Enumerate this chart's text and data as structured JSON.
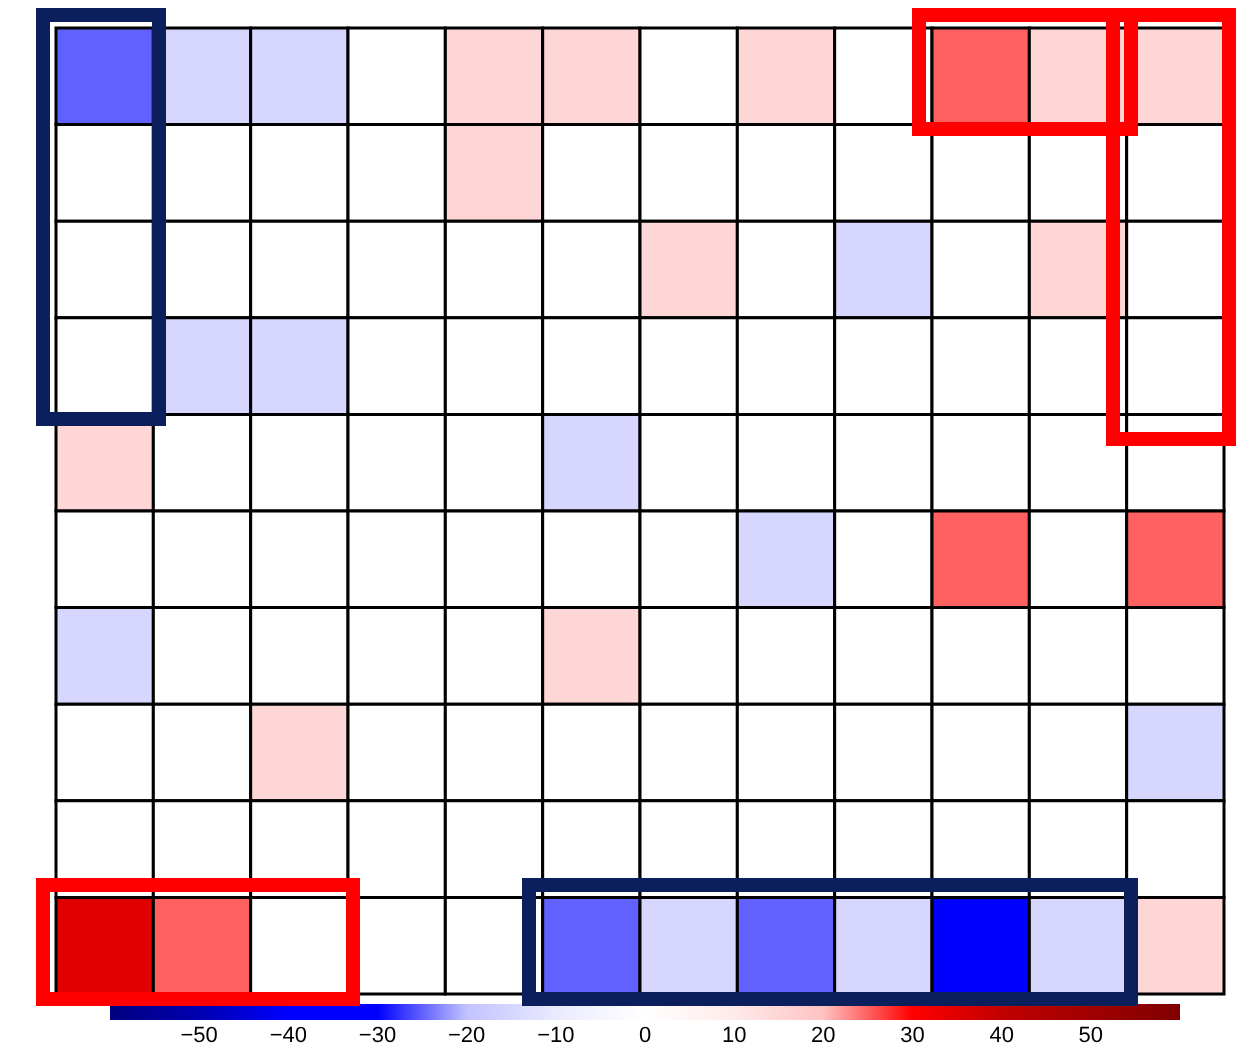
{
  "chart_data": {
    "type": "heatmap",
    "categories": [
      null,
      null,
      null,
      null,
      null,
      null,
      null,
      null,
      null,
      null,
      null,
      null
    ],
    "y_categories": [
      null,
      null,
      null,
      null,
      null,
      null,
      null,
      null,
      null,
      null
    ],
    "cells": [
      [
        -25,
        -15,
        -15,
        0,
        15,
        15,
        0,
        15,
        0,
        25,
        15,
        15
      ],
      [
        0,
        0,
        0,
        0,
        15,
        0,
        0,
        0,
        0,
        0,
        0,
        0
      ],
      [
        0,
        0,
        0,
        0,
        0,
        0,
        15,
        0,
        -15,
        0,
        15,
        0
      ],
      [
        0,
        -15,
        -15,
        0,
        0,
        0,
        0,
        0,
        0,
        0,
        0,
        0
      ],
      [
        15,
        0,
        0,
        0,
        0,
        -15,
        0,
        0,
        0,
        0,
        0,
        0
      ],
      [
        0,
        0,
        0,
        0,
        0,
        0,
        0,
        -15,
        0,
        25,
        0,
        25
      ],
      [
        -15,
        0,
        0,
        0,
        0,
        15,
        0,
        0,
        0,
        0,
        0,
        0
      ],
      [
        0,
        0,
        15,
        0,
        0,
        0,
        0,
        0,
        0,
        0,
        0,
        -15
      ],
      [
        0,
        0,
        0,
        0,
        0,
        0,
        0,
        0,
        0,
        0,
        0,
        0
      ],
      [
        35,
        25,
        0,
        0,
        0,
        -25,
        -15,
        -25,
        -15,
        -35,
        -15,
        15
      ]
    ],
    "clim": [
      -60,
      60
    ],
    "cticks": [
      -50,
      -40,
      -30,
      -20,
      -10,
      0,
      10,
      20,
      30,
      40,
      50
    ],
    "tick_labels": false
  }
}
